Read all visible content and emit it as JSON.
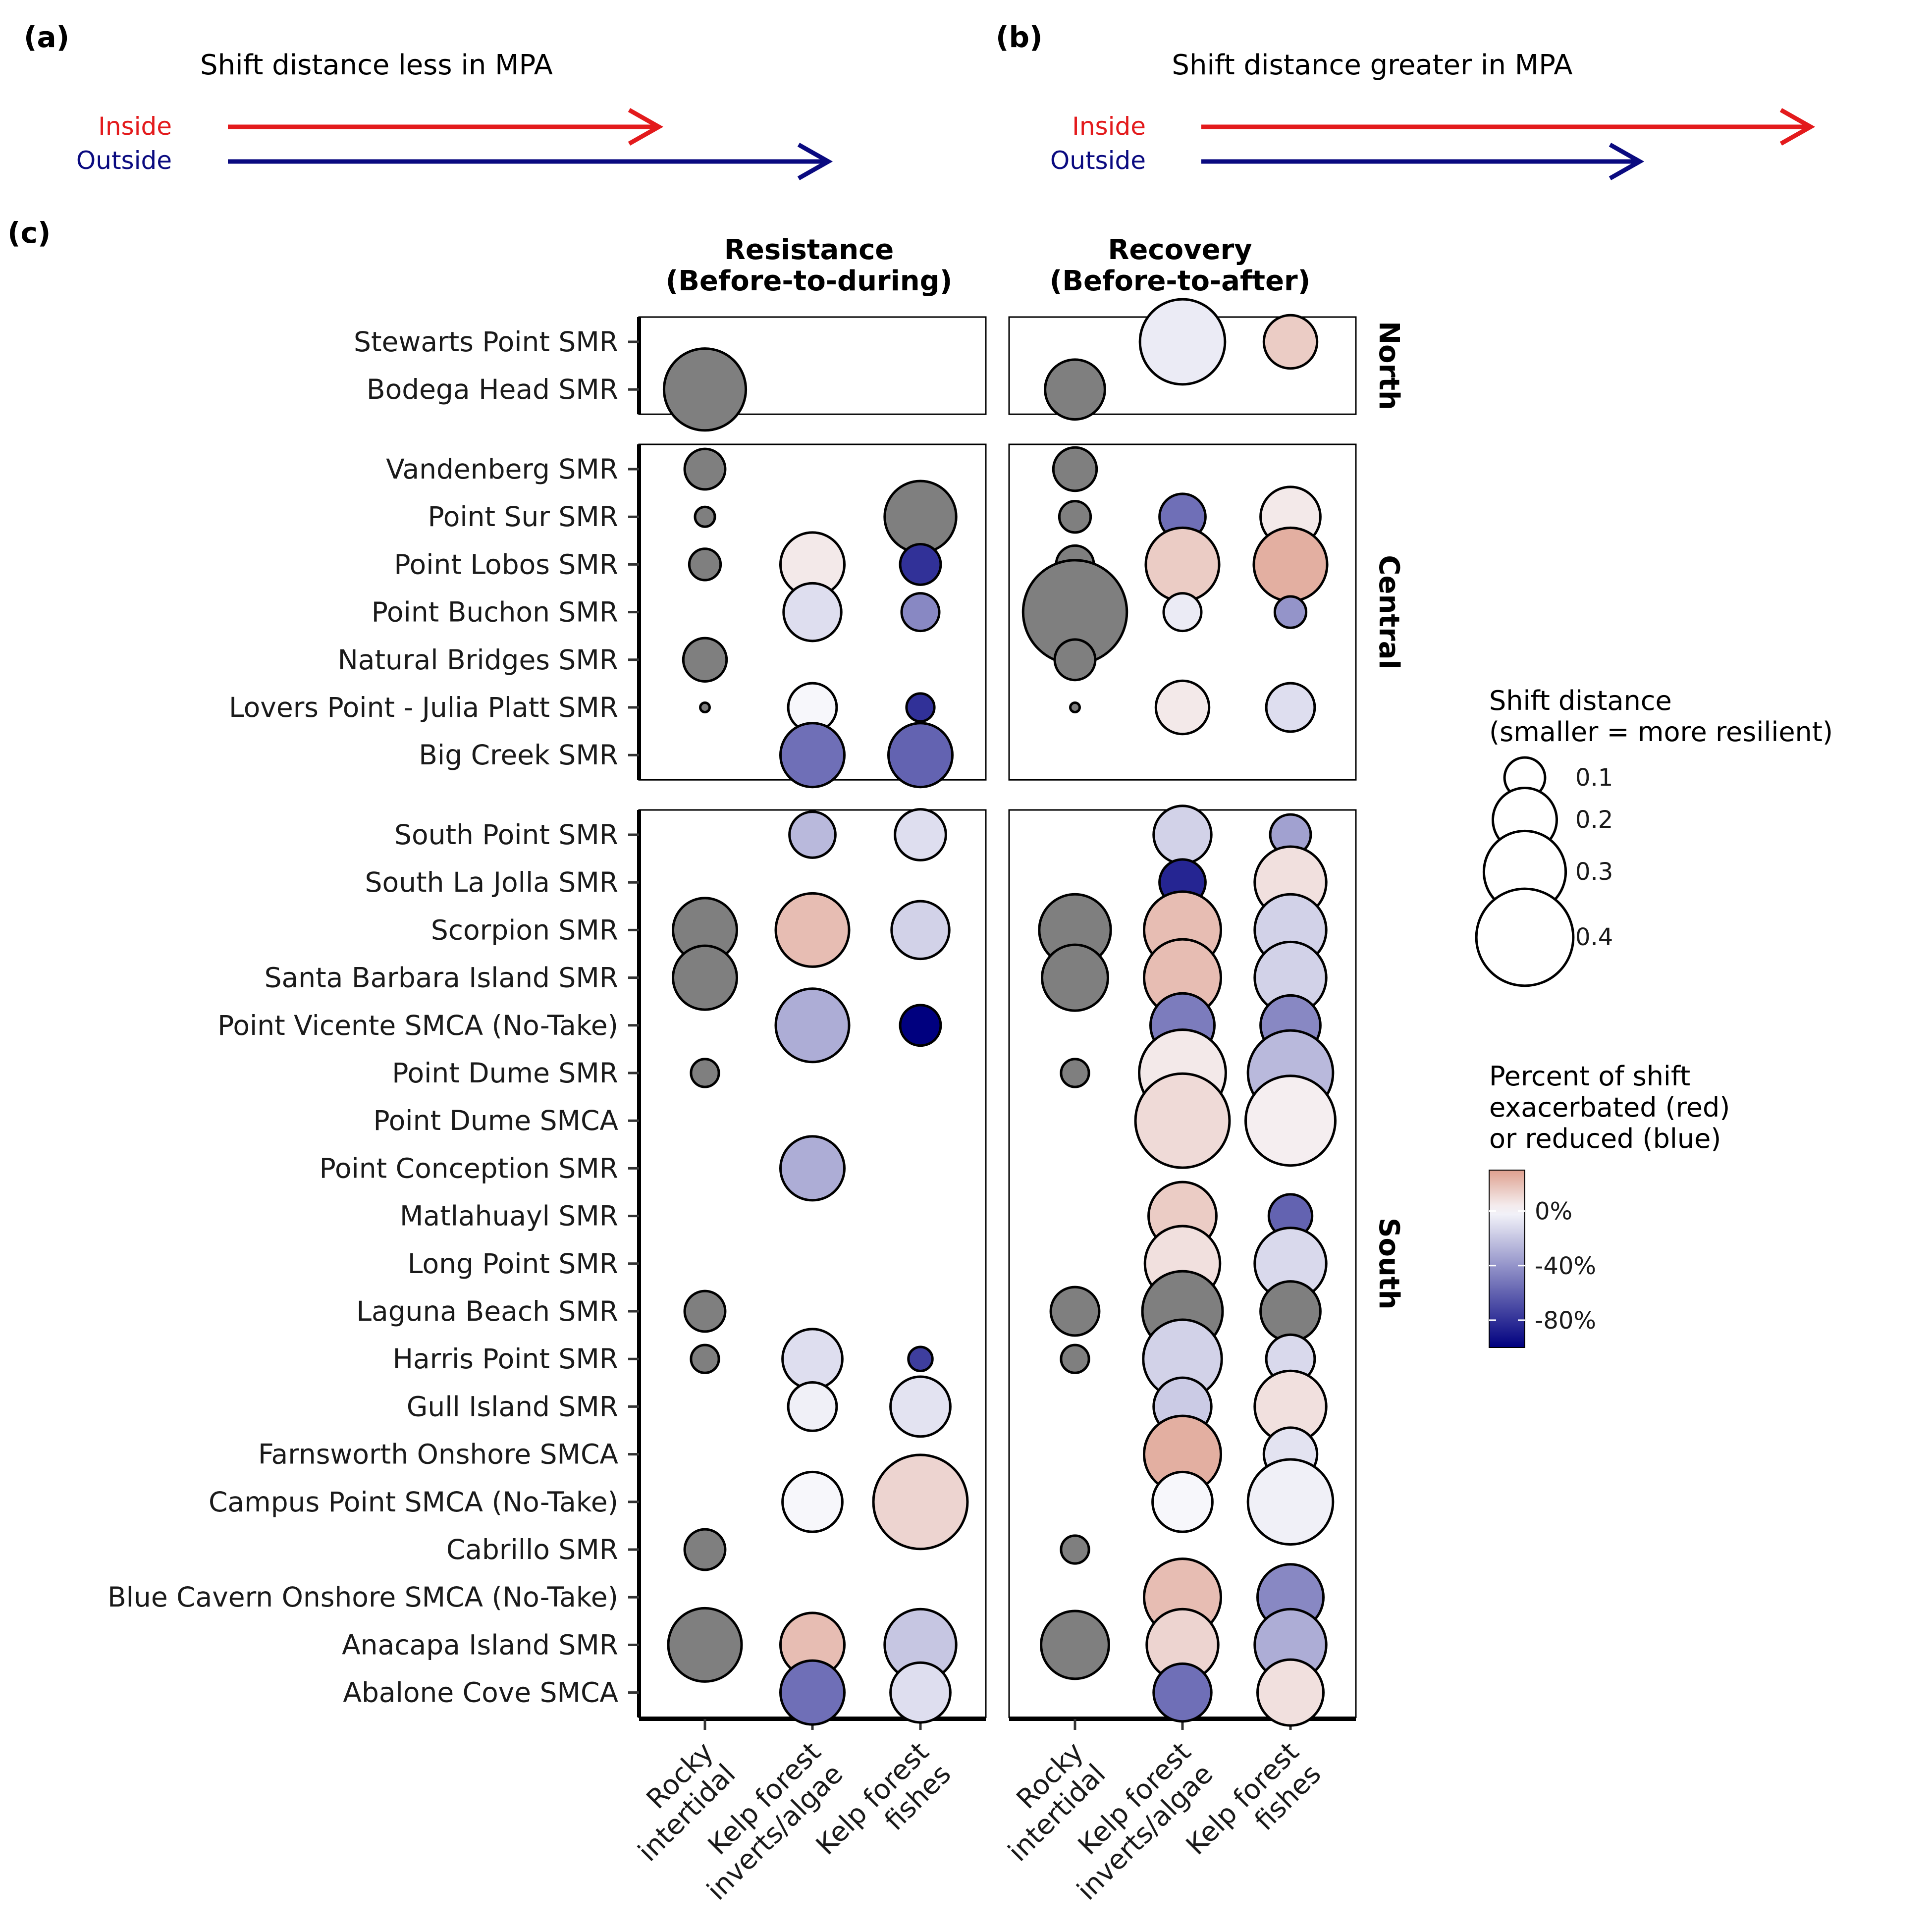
{
  "panel_a": {
    "tag": "(a)",
    "title": "Shift distance less in MPA",
    "inside_label": "Inside",
    "outside_label": "Outside"
  },
  "panel_b": {
    "tag": "(b)",
    "title": "Shift distance greater in MPA",
    "inside_label": "Inside",
    "outside_label": "Outside"
  },
  "arrow_colors": {
    "inside": "#e31a1c",
    "outside": "#0a0a80"
  },
  "panel_c_tag": "(c)",
  "chart_data": {
    "type": "scatter",
    "facets": [
      {
        "line1": "Resistance",
        "line2": "(Before-to-during)"
      },
      {
        "line1": "Recovery",
        "line2": "(Before-to-after)"
      }
    ],
    "x_categories": [
      {
        "line1": "Rocky",
        "line2": "intertidal"
      },
      {
        "line1": "Kelp forest",
        "line2": "inverts/algae"
      },
      {
        "line1": "Kelp forest",
        "line2": "fishes"
      }
    ],
    "regions": [
      {
        "name": "North",
        "sites": [
          "Stewarts Point SMR",
          "Bodega Head SMR"
        ]
      },
      {
        "name": "Central",
        "sites": [
          "Vandenberg SMR",
          "Point Sur SMR",
          "Point Lobos SMR",
          "Point Buchon SMR",
          "Natural Bridges SMR",
          "Lovers Point - Julia Platt SMR",
          "Big Creek SMR"
        ]
      },
      {
        "name": "South",
        "sites": [
          "South Point SMR",
          "South La Jolla SMR",
          "Scorpion SMR",
          "Santa Barbara Island SMR",
          "Point Vicente SMCA (No-Take)",
          "Point Dume SMR",
          "Point Dume SMCA",
          "Point Conception SMR",
          "Matlahuayl SMR",
          "Long Point SMR",
          "Laguna Beach SMR",
          "Harris Point SMR",
          "Gull Island SMR",
          "Farnsworth Onshore SMCA",
          "Campus Point SMCA (No-Take)",
          "Cabrillo SMR",
          "Blue Cavern Onshore SMCA (No-Take)",
          "Anacapa Island SMR",
          "Abalone Cove SMCA"
        ]
      }
    ],
    "na_color": "#7f7f7f",
    "points": [
      {
        "facet": 0,
        "site": "Bodega Head SMR",
        "cat": 0,
        "size": 0.3,
        "pct": null
      },
      {
        "facet": 1,
        "site": "Stewarts Point SMR",
        "cat": 1,
        "size": 0.32,
        "pct": -5
      },
      {
        "facet": 1,
        "site": "Stewarts Point SMR",
        "cat": 2,
        "size": 0.15,
        "pct": 15
      },
      {
        "facet": 1,
        "site": "Bodega Head SMR",
        "cat": 0,
        "size": 0.18,
        "pct": null
      },
      {
        "facet": 0,
        "site": "Vandenberg SMR",
        "cat": 0,
        "size": 0.1,
        "pct": null
      },
      {
        "facet": 0,
        "site": "Point Sur SMR",
        "cat": 0,
        "size": 0.04,
        "pct": null
      },
      {
        "facet": 0,
        "site": "Point Sur SMR",
        "cat": 2,
        "size": 0.24,
        "pct": null
      },
      {
        "facet": 0,
        "site": "Point Lobos SMR",
        "cat": 0,
        "size": 0.07,
        "pct": null
      },
      {
        "facet": 0,
        "site": "Point Lobos SMR",
        "cat": 1,
        "size": 0.2,
        "pct": 5
      },
      {
        "facet": 0,
        "site": "Point Lobos SMR",
        "cat": 2,
        "size": 0.1,
        "pct": -80
      },
      {
        "facet": 0,
        "site": "Point Buchon SMR",
        "cat": 1,
        "size": 0.17,
        "pct": -10
      },
      {
        "facet": 0,
        "site": "Point Buchon SMR",
        "cat": 2,
        "size": 0.09,
        "pct": -45
      },
      {
        "facet": 0,
        "site": "Natural Bridges SMR",
        "cat": 0,
        "size": 0.11,
        "pct": null
      },
      {
        "facet": 0,
        "site": "Lovers Point - Julia Platt SMR",
        "cat": 0,
        "size": 0.02,
        "pct": null
      },
      {
        "facet": 0,
        "site": "Lovers Point - Julia Platt SMR",
        "cat": 1,
        "size": 0.13,
        "pct": 0
      },
      {
        "facet": 0,
        "site": "Lovers Point - Julia Platt SMR",
        "cat": 2,
        "size": 0.06,
        "pct": -80
      },
      {
        "facet": 0,
        "site": "Big Creek SMR",
        "cat": 1,
        "size": 0.2,
        "pct": -55
      },
      {
        "facet": 0,
        "site": "Big Creek SMR",
        "cat": 2,
        "size": 0.2,
        "pct": -60
      },
      {
        "facet": 1,
        "site": "Vandenberg SMR",
        "cat": 0,
        "size": 0.11,
        "pct": null
      },
      {
        "facet": 1,
        "site": "Point Sur SMR",
        "cat": 0,
        "size": 0.07,
        "pct": null
      },
      {
        "facet": 1,
        "site": "Point Sur SMR",
        "cat": 1,
        "size": 0.12,
        "pct": -55
      },
      {
        "facet": 1,
        "site": "Point Sur SMR",
        "cat": 2,
        "size": 0.18,
        "pct": 5
      },
      {
        "facet": 1,
        "site": "Point Lobos SMR",
        "cat": 0,
        "size": 0.09,
        "pct": null
      },
      {
        "facet": 1,
        "site": "Point Lobos SMR",
        "cat": 1,
        "size": 0.25,
        "pct": 15
      },
      {
        "facet": 1,
        "site": "Point Lobos SMR",
        "cat": 2,
        "size": 0.25,
        "pct": 25
      },
      {
        "facet": 1,
        "site": "Point Buchon SMR",
        "cat": 0,
        "size": 0.45,
        "pct": null
      },
      {
        "facet": 1,
        "site": "Point Buchon SMR",
        "cat": 1,
        "size": 0.09,
        "pct": -5
      },
      {
        "facet": 1,
        "site": "Point Buchon SMR",
        "cat": 2,
        "size": 0.07,
        "pct": -40
      },
      {
        "facet": 1,
        "site": "Natural Bridges SMR",
        "cat": 0,
        "size": 0.1,
        "pct": null
      },
      {
        "facet": 1,
        "site": "Lovers Point - Julia Platt SMR",
        "cat": 0,
        "size": 0.02,
        "pct": null
      },
      {
        "facet": 1,
        "site": "Lovers Point - Julia Platt SMR",
        "cat": 1,
        "size": 0.15,
        "pct": 5
      },
      {
        "facet": 1,
        "site": "Lovers Point - Julia Platt SMR",
        "cat": 2,
        "size": 0.13,
        "pct": -10
      },
      {
        "facet": 0,
        "site": "South Point SMR",
        "cat": 1,
        "size": 0.12,
        "pct": -25
      },
      {
        "facet": 0,
        "site": "South Point SMR",
        "cat": 2,
        "size": 0.14,
        "pct": -10
      },
      {
        "facet": 0,
        "site": "Scorpion SMR",
        "cat": 0,
        "size": 0.2,
        "pct": null
      },
      {
        "facet": 0,
        "site": "Scorpion SMR",
        "cat": 1,
        "size": 0.25,
        "pct": 20
      },
      {
        "facet": 0,
        "site": "Scorpion SMR",
        "cat": 2,
        "size": 0.17,
        "pct": -15
      },
      {
        "facet": 0,
        "site": "Santa Barbara Island SMR",
        "cat": 0,
        "size": 0.2,
        "pct": null
      },
      {
        "facet": 0,
        "site": "Point Vicente SMCA (No-Take)",
        "cat": 1,
        "size": 0.25,
        "pct": -30
      },
      {
        "facet": 0,
        "site": "Point Vicente SMCA (No-Take)",
        "cat": 2,
        "size": 0.1,
        "pct": -100
      },
      {
        "facet": 0,
        "site": "Point Dume SMR",
        "cat": 0,
        "size": 0.06,
        "pct": null
      },
      {
        "facet": 0,
        "site": "Point Conception SMR",
        "cat": 1,
        "size": 0.2,
        "pct": -30
      },
      {
        "facet": 0,
        "site": "Laguna Beach SMR",
        "cat": 0,
        "size": 0.1,
        "pct": null
      },
      {
        "facet": 0,
        "site": "Harris Point SMR",
        "cat": 0,
        "size": 0.06,
        "pct": null
      },
      {
        "facet": 0,
        "site": "Harris Point SMR",
        "cat": 1,
        "size": 0.18,
        "pct": -10
      },
      {
        "facet": 0,
        "site": "Harris Point SMR",
        "cat": 2,
        "size": 0.05,
        "pct": -75
      },
      {
        "facet": 0,
        "site": "Gull Island SMR",
        "cat": 1,
        "size": 0.13,
        "pct": -3
      },
      {
        "facet": 0,
        "site": "Gull Island SMR",
        "cat": 2,
        "size": 0.18,
        "pct": -8
      },
      {
        "facet": 0,
        "site": "Campus Point SMCA (No-Take)",
        "cat": 1,
        "size": 0.18,
        "pct": 0
      },
      {
        "facet": 0,
        "site": "Campus Point SMCA (No-Take)",
        "cat": 2,
        "size": 0.38,
        "pct": 12
      },
      {
        "facet": 0,
        "site": "Cabrillo SMR",
        "cat": 0,
        "size": 0.1,
        "pct": null
      },
      {
        "facet": 0,
        "site": "Anacapa Island SMR",
        "cat": 0,
        "size": 0.25,
        "pct": null
      },
      {
        "facet": 0,
        "site": "Anacapa Island SMR",
        "cat": 1,
        "size": 0.2,
        "pct": 20
      },
      {
        "facet": 0,
        "site": "Anacapa Island SMR",
        "cat": 2,
        "size": 0.24,
        "pct": -20
      },
      {
        "facet": 0,
        "site": "Abalone Cove SMCA",
        "cat": 1,
        "size": 0.2,
        "pct": -55
      },
      {
        "facet": 0,
        "site": "Abalone Cove SMCA",
        "cat": 2,
        "size": 0.18,
        "pct": -10
      },
      {
        "facet": 1,
        "site": "South Point SMR",
        "cat": 1,
        "size": 0.17,
        "pct": -15
      },
      {
        "facet": 1,
        "site": "South Point SMR",
        "cat": 2,
        "size": 0.1,
        "pct": -35
      },
      {
        "facet": 1,
        "site": "South La Jolla SMR",
        "cat": 1,
        "size": 0.12,
        "pct": -85
      },
      {
        "facet": 1,
        "site": "South La Jolla SMR",
        "cat": 2,
        "size": 0.24,
        "pct": 8
      },
      {
        "facet": 1,
        "site": "Scorpion SMR",
        "cat": 0,
        "size": 0.24,
        "pct": null
      },
      {
        "facet": 1,
        "site": "Scorpion SMR",
        "cat": 1,
        "size": 0.27,
        "pct": 20
      },
      {
        "facet": 1,
        "site": "Scorpion SMR",
        "cat": 2,
        "size": 0.24,
        "pct": -15
      },
      {
        "facet": 1,
        "site": "Santa Barbara Island SMR",
        "cat": 0,
        "size": 0.21,
        "pct": null
      },
      {
        "facet": 1,
        "site": "Santa Barbara Island SMR",
        "cat": 1,
        "size": 0.27,
        "pct": 20
      },
      {
        "facet": 1,
        "site": "Santa Barbara Island SMR",
        "cat": 2,
        "size": 0.24,
        "pct": -15
      },
      {
        "facet": 1,
        "site": "Point Vicente SMCA (No-Take)",
        "cat": 1,
        "size": 0.2,
        "pct": -50
      },
      {
        "facet": 1,
        "site": "Point Vicente SMCA (No-Take)",
        "cat": 2,
        "size": 0.18,
        "pct": -45
      },
      {
        "facet": 1,
        "site": "Point Dume SMR",
        "cat": 0,
        "size": 0.06,
        "pct": null
      },
      {
        "facet": 1,
        "site": "Point Dume SMR",
        "cat": 1,
        "size": 0.33,
        "pct": 5
      },
      {
        "facet": 1,
        "site": "Point Dume SMR",
        "cat": 2,
        "size": 0.32,
        "pct": -25
      },
      {
        "facet": 1,
        "site": "Point Dume SMCA",
        "cat": 1,
        "size": 0.38,
        "pct": 10
      },
      {
        "facet": 1,
        "site": "Point Dume SMCA",
        "cat": 2,
        "size": 0.35,
        "pct": 3
      },
      {
        "facet": 1,
        "site": "Matlahuayl SMR",
        "cat": 1,
        "size": 0.22,
        "pct": 15
      },
      {
        "facet": 1,
        "site": "Matlahuayl SMR",
        "cat": 2,
        "size": 0.11,
        "pct": -60
      },
      {
        "facet": 1,
        "site": "Long Point SMR",
        "cat": 1,
        "size": 0.26,
        "pct": 8
      },
      {
        "facet": 1,
        "site": "Long Point SMR",
        "cat": 2,
        "size": 0.24,
        "pct": -12
      },
      {
        "facet": 1,
        "site": "Laguna Beach SMR",
        "cat": 0,
        "size": 0.13,
        "pct": null
      },
      {
        "facet": 1,
        "site": "Laguna Beach SMR",
        "cat": 1,
        "size": 0.29,
        "pct": null
      },
      {
        "facet": 1,
        "site": "Laguna Beach SMR",
        "cat": 2,
        "size": 0.18,
        "pct": null
      },
      {
        "facet": 1,
        "site": "Harris Point SMR",
        "cat": 0,
        "size": 0.06,
        "pct": null
      },
      {
        "facet": 1,
        "site": "Harris Point SMR",
        "cat": 1,
        "size": 0.28,
        "pct": -15
      },
      {
        "facet": 1,
        "site": "Harris Point SMR",
        "cat": 2,
        "size": 0.13,
        "pct": -12
      },
      {
        "facet": 1,
        "site": "Gull Island SMR",
        "cat": 1,
        "size": 0.17,
        "pct": -18
      },
      {
        "facet": 1,
        "site": "Gull Island SMR",
        "cat": 2,
        "size": 0.24,
        "pct": 8
      },
      {
        "facet": 1,
        "site": "Farnsworth Onshore SMCA",
        "cat": 1,
        "size": 0.27,
        "pct": 25
      },
      {
        "facet": 1,
        "site": "Farnsworth Onshore SMCA",
        "cat": 2,
        "size": 0.15,
        "pct": -8
      },
      {
        "facet": 1,
        "site": "Campus Point SMCA (No-Take)",
        "cat": 1,
        "size": 0.18,
        "pct": 0
      },
      {
        "facet": 1,
        "site": "Campus Point SMCA (No-Take)",
        "cat": 2,
        "size": 0.32,
        "pct": -3
      },
      {
        "facet": 1,
        "site": "Cabrillo SMR",
        "cat": 0,
        "size": 0.06,
        "pct": null
      },
      {
        "facet": 1,
        "site": "Blue Cavern Onshore SMCA (No-Take)",
        "cat": 1,
        "size": 0.27,
        "pct": 20
      },
      {
        "facet": 1,
        "site": "Blue Cavern Onshore SMCA (No-Take)",
        "cat": 2,
        "size": 0.21,
        "pct": -45
      },
      {
        "facet": 1,
        "site": "Anacapa Island SMR",
        "cat": 0,
        "size": 0.22,
        "pct": null
      },
      {
        "facet": 1,
        "site": "Anacapa Island SMR",
        "cat": 1,
        "size": 0.24,
        "pct": 12
      },
      {
        "facet": 1,
        "site": "Anacapa Island SMR",
        "cat": 2,
        "size": 0.24,
        "pct": -30
      },
      {
        "facet": 1,
        "site": "Abalone Cove SMCA",
        "cat": 1,
        "size": 0.17,
        "pct": -55
      },
      {
        "facet": 1,
        "site": "Abalone Cove SMCA",
        "cat": 2,
        "size": 0.21,
        "pct": 8
      }
    ],
    "size_legend": {
      "title_line1": "Shift distance",
      "title_line2": "(smaller = more resilient)",
      "breaks": [
        0.1,
        0.2,
        0.3,
        0.4
      ],
      "labels": [
        "0.1",
        "0.2",
        "0.3",
        "0.4"
      ]
    },
    "color_legend": {
      "title_line1": "Percent of shift",
      "title_line2": "exacerbated (red)",
      "title_line3": "or reduced (blue)",
      "range": [
        -100,
        30
      ],
      "breaks": [
        0,
        -40,
        -80
      ],
      "labels": [
        "0%",
        "-40%",
        "-80%"
      ],
      "low_color": "#00007f",
      "mid_color": "#f7f7fb",
      "high_color": "#dfa08f"
    }
  }
}
